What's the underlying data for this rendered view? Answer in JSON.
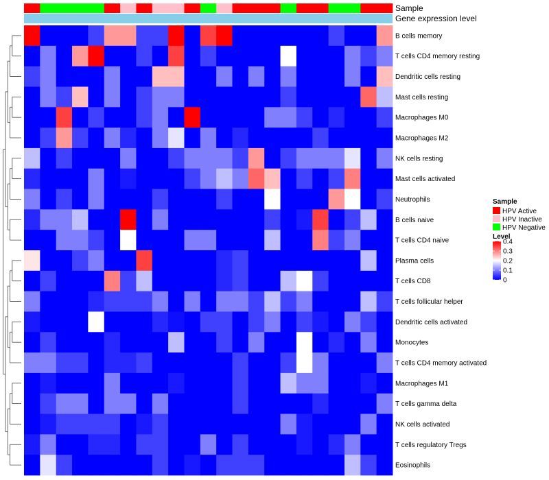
{
  "chart_data": {
    "type": "heatmap",
    "title": "",
    "annotations": {
      "sample_label": "Sample",
      "expression_label": "Gene expression level",
      "samples": [
        "HPV Active",
        "HPV Negative",
        "HPV Negative",
        "HPV Negative",
        "HPV Negative",
        "HPV Active",
        "HPV Inactive",
        "HPV Active",
        "HPV Inactive",
        "HPV Inactive",
        "HPV Active",
        "HPV Negative",
        "HPV Inactive",
        "HPV Active",
        "HPV Active",
        "HPV Active",
        "HPV Negative",
        "HPV Active",
        "HPV Active",
        "HPV Negative",
        "HPV Negative",
        "HPV Active",
        "HPV Active"
      ]
    },
    "rows": [
      "B cells memory",
      "T cells CD4 memory resting",
      "Dendritic cells resting",
      "Mast cells resting",
      "Macrophages M0",
      "Macrophages M2",
      "NK cells resting",
      "Mast cells activated",
      "Neutrophils",
      "B cells naive",
      "T cells CD4 naive",
      "Plasma cells",
      "T cells CD8",
      "T cells follicular helper",
      "Dendritic cells activated",
      "Monocytes",
      "T cells CD4 memory activated",
      "Macrophages M1",
      "T cells gamma delta",
      "NK cells activated",
      "T cells regulatory  Tregs",
      "Eosinophils"
    ],
    "values": [
      [
        0.4,
        0.0,
        0.0,
        0.0,
        0.05,
        0.28,
        0.28,
        0.05,
        0.05,
        0.4,
        0.0,
        0.35,
        0.4,
        0.0,
        0.0,
        0.0,
        0.0,
        0.0,
        0.0,
        0.05,
        0.0,
        0.0,
        0.28
      ],
      [
        0.0,
        0.1,
        0.0,
        0.28,
        0.4,
        0.0,
        0.0,
        0.05,
        0.0,
        0.35,
        0.0,
        0.05,
        0.0,
        0.0,
        0.0,
        0.0,
        0.2,
        0.0,
        0.0,
        0.0,
        0.1,
        0.05,
        0.1
      ],
      [
        0.05,
        0.1,
        0.0,
        0.0,
        0.0,
        0.1,
        0.0,
        0.0,
        0.25,
        0.25,
        0.0,
        0.0,
        0.1,
        0.0,
        0.1,
        0.0,
        0.1,
        0.0,
        0.0,
        0.0,
        0.1,
        0.0,
        0.25
      ],
      [
        0.0,
        0.1,
        0.05,
        0.25,
        0.0,
        0.1,
        0.0,
        0.05,
        0.1,
        0.1,
        0.0,
        0.0,
        0.0,
        0.0,
        0.0,
        0.0,
        0.05,
        0.0,
        0.0,
        0.0,
        0.0,
        0.32,
        0.15
      ],
      [
        0.0,
        0.0,
        0.35,
        0.0,
        0.05,
        0.0,
        0.0,
        0.05,
        0.1,
        0.0,
        0.4,
        0.0,
        0.0,
        0.0,
        0.0,
        0.1,
        0.1,
        0.05,
        0.0,
        0.03,
        0.0,
        0.0,
        0.05
      ],
      [
        0.0,
        0.05,
        0.28,
        0.05,
        0.0,
        0.1,
        0.03,
        0.0,
        0.1,
        0.18,
        0.0,
        0.1,
        0.0,
        0.03,
        0.0,
        0.0,
        0.0,
        0.0,
        0.05,
        0.0,
        0.0,
        0.0,
        0.0
      ],
      [
        0.15,
        0.0,
        0.05,
        0.0,
        0.0,
        0.0,
        0.1,
        0.0,
        0.0,
        0.05,
        0.1,
        0.1,
        0.1,
        0.05,
        0.28,
        0.0,
        0.05,
        0.1,
        0.1,
        0.1,
        0.18,
        0.0,
        0.1
      ],
      [
        0.03,
        0.0,
        0.0,
        0.0,
        0.1,
        0.0,
        0.02,
        0.0,
        0.0,
        0.0,
        0.05,
        0.1,
        0.15,
        0.1,
        0.32,
        0.25,
        0.0,
        0.05,
        0.0,
        0.05,
        0.3,
        0.0,
        0.0
      ],
      [
        0.1,
        0.0,
        0.05,
        0.0,
        0.1,
        0.0,
        0.0,
        0.0,
        0.05,
        0.0,
        0.0,
        0.0,
        0.05,
        0.0,
        0.0,
        0.2,
        0.0,
        0.0,
        0.0,
        0.28,
        0.2,
        0.0,
        0.05
      ],
      [
        0.03,
        0.1,
        0.1,
        0.15,
        0.0,
        0.0,
        0.4,
        0.0,
        0.1,
        0.0,
        0.0,
        0.0,
        0.0,
        0.0,
        0.0,
        0.05,
        0.0,
        0.02,
        0.35,
        0.0,
        0.05,
        0.15,
        0.0
      ],
      [
        0.0,
        0.0,
        0.1,
        0.1,
        0.05,
        0.0,
        0.2,
        0.0,
        0.0,
        0.0,
        0.1,
        0.1,
        0.0,
        0.0,
        0.0,
        0.15,
        0.0,
        0.0,
        0.3,
        0.05,
        0.1,
        0.0,
        0.0
      ],
      [
        0.22,
        0.0,
        0.0,
        0.05,
        0.1,
        0.0,
        0.0,
        0.35,
        0.0,
        0.0,
        0.0,
        0.0,
        0.03,
        0.05,
        0.0,
        0.0,
        0.0,
        0.0,
        0.0,
        0.0,
        0.0,
        0.15,
        0.0
      ],
      [
        0.0,
        0.05,
        0.0,
        0.0,
        0.0,
        0.3,
        0.05,
        0.15,
        0.0,
        0.0,
        0.0,
        0.0,
        0.03,
        0.05,
        0.0,
        0.0,
        0.15,
        0.2,
        0.05,
        0.0,
        0.0,
        0.0,
        0.0
      ],
      [
        0.1,
        0.0,
        0.0,
        0.0,
        0.03,
        0.05,
        0.05,
        0.05,
        0.1,
        0.0,
        0.1,
        0.0,
        0.1,
        0.1,
        0.05,
        0.15,
        0.05,
        0.1,
        0.0,
        0.0,
        0.0,
        0.15,
        0.05
      ],
      [
        0.02,
        0.0,
        0.0,
        0.0,
        0.2,
        0.0,
        0.0,
        0.0,
        0.03,
        0.01,
        0.0,
        0.05,
        0.05,
        0.0,
        0.05,
        0.1,
        0.0,
        0.05,
        0.02,
        0.0,
        0.1,
        0.05,
        0.0
      ],
      [
        0.0,
        0.05,
        0.0,
        0.0,
        0.0,
        0.03,
        0.0,
        0.0,
        0.0,
        0.15,
        0.0,
        0.0,
        0.05,
        0.0,
        0.1,
        0.0,
        0.0,
        0.2,
        0.0,
        0.03,
        0.0,
        0.1,
        0.0
      ],
      [
        0.1,
        0.1,
        0.05,
        0.05,
        0.0,
        0.03,
        0.03,
        0.05,
        0.0,
        0.0,
        0.0,
        0.0,
        0.0,
        0.05,
        0.0,
        0.0,
        0.05,
        0.2,
        0.1,
        0.0,
        0.0,
        0.0,
        0.1
      ],
      [
        0.0,
        0.02,
        0.0,
        0.0,
        0.0,
        0.1,
        0.0,
        0.0,
        0.0,
        0.02,
        0.0,
        0.0,
        0.0,
        0.05,
        0.0,
        0.0,
        0.15,
        0.1,
        0.1,
        0.0,
        0.0,
        0.02,
        0.0
      ],
      [
        0.0,
        0.05,
        0.1,
        0.1,
        0.0,
        0.1,
        0.1,
        0.0,
        0.1,
        0.0,
        0.0,
        0.0,
        0.0,
        0.05,
        0.0,
        0.0,
        0.0,
        0.0,
        0.03,
        0.0,
        0.0,
        0.0,
        0.1
      ],
      [
        0.0,
        0.02,
        0.05,
        0.05,
        0.05,
        0.05,
        0.0,
        0.02,
        0.05,
        0.0,
        0.0,
        0.0,
        0.0,
        0.0,
        0.0,
        0.0,
        0.1,
        0.02,
        0.0,
        0.0,
        0.0,
        0.1,
        0.0
      ],
      [
        0.02,
        0.1,
        0.0,
        0.0,
        0.03,
        0.03,
        0.0,
        0.05,
        0.05,
        0.0,
        0.0,
        0.1,
        0.0,
        0.05,
        0.0,
        0.0,
        0.0,
        0.02,
        0.0,
        0.03,
        0.1,
        0.0,
        0.0
      ],
      [
        0.0,
        0.18,
        0.05,
        0.0,
        0.0,
        0.0,
        0.0,
        0.0,
        0.05,
        0.0,
        0.02,
        0.0,
        0.05,
        0.05,
        0.05,
        0.0,
        0.0,
        0.0,
        0.0,
        0.0,
        0.15,
        0.05,
        0.0
      ]
    ],
    "legend": {
      "sample_title": "Sample",
      "sample_items": [
        {
          "name": "HPV Active",
          "color": "#ff0000"
        },
        {
          "name": "HPV Inactive",
          "color": "#ffc0cb"
        },
        {
          "name": "HPV Negative",
          "color": "#00ff00"
        }
      ],
      "level_title": "Level",
      "level_ticks": [
        0.4,
        0.3,
        0.2,
        0.1,
        0
      ],
      "level_range": [
        0,
        0.4
      ]
    },
    "colors": {
      "low": "#0000ff",
      "mid": "#ffffff",
      "high": "#ff0000",
      "expression_bar": "#87ceeb"
    }
  }
}
